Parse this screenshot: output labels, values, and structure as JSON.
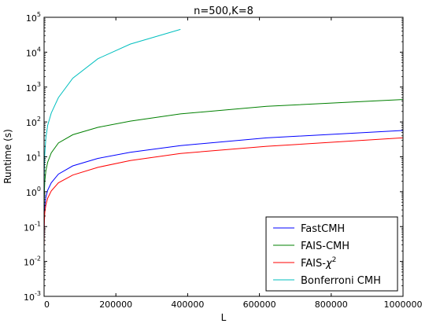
{
  "chart_data": {
    "type": "line",
    "title": "n=500,K=8",
    "xlabel": "L",
    "ylabel": "Runtime (s)",
    "xlim": [
      0,
      1000000
    ],
    "ylim": [
      0.001,
      100000
    ],
    "yscale": "log",
    "grid": false,
    "legend_position": "bottom-right",
    "x_ticks": [
      {
        "value": 0,
        "label": "0"
      },
      {
        "value": 200000,
        "label": "200000"
      },
      {
        "value": 400000,
        "label": "400000"
      },
      {
        "value": 600000,
        "label": "600000"
      },
      {
        "value": 800000,
        "label": "800000"
      },
      {
        "value": 1000000,
        "label": "1000000"
      }
    ],
    "y_ticks": [
      {
        "value": 0.001,
        "mantissa": "10",
        "exponent": "-3"
      },
      {
        "value": 0.01,
        "mantissa": "10",
        "exponent": "-2"
      },
      {
        "value": 0.1,
        "mantissa": "10",
        "exponent": "-1"
      },
      {
        "value": 1,
        "mantissa": "10",
        "exponent": "0"
      },
      {
        "value": 10,
        "mantissa": "10",
        "exponent": "1"
      },
      {
        "value": 100,
        "mantissa": "10",
        "exponent": "2"
      },
      {
        "value": 1000,
        "mantissa": "10",
        "exponent": "3"
      },
      {
        "value": 10000,
        "mantissa": "10",
        "exponent": "4"
      },
      {
        "value": 100000,
        "mantissa": "10",
        "exponent": "5"
      }
    ],
    "series": [
      {
        "name": "FastCMH",
        "color": "#0000ff",
        "x": [
          100,
          500,
          1000,
          2000,
          5000,
          10000,
          20000,
          40000,
          80000,
          150000,
          240000,
          380000,
          620000,
          1000000
        ],
        "y": [
          0.05,
          0.15,
          0.25,
          0.4,
          0.7,
          1.1,
          1.8,
          3.2,
          5.5,
          9.0,
          13.5,
          21.0,
          35.0,
          57.0
        ]
      },
      {
        "name": "FAIS-CMH",
        "color": "#008000",
        "x": [
          100,
          500,
          1000,
          2000,
          5000,
          10000,
          20000,
          40000,
          80000,
          150000,
          240000,
          380000,
          620000,
          1000000
        ],
        "y": [
          0.15,
          0.6,
          1.1,
          2.0,
          4.0,
          7.0,
          13.0,
          25.0,
          43.0,
          70.0,
          105.0,
          170.0,
          280.0,
          440.0
        ]
      },
      {
        "name": "FAIS-χ²",
        "label_base": "FAIS-",
        "label_math": "χ",
        "label_sup": "2",
        "color": "#ff0000",
        "x": [
          100,
          500,
          1000,
          2000,
          5000,
          10000,
          20000,
          40000,
          80000,
          150000,
          240000,
          380000,
          620000,
          1000000
        ],
        "y": [
          0.03,
          0.09,
          0.15,
          0.25,
          0.42,
          0.65,
          1.05,
          1.8,
          3.0,
          5.0,
          7.8,
          12.5,
          20.0,
          35.0
        ]
      },
      {
        "name": "Bonferroni CMH",
        "color": "#00bfbf",
        "x": [
          100,
          500,
          1000,
          2000,
          5000,
          10000,
          20000,
          40000,
          80000,
          150000,
          240000,
          380000
        ],
        "y": [
          0.3,
          2.0,
          5.0,
          12.0,
          35.0,
          80.0,
          180.0,
          500.0,
          1800.0,
          6500.0,
          17000.0,
          45000.0
        ]
      }
    ]
  }
}
